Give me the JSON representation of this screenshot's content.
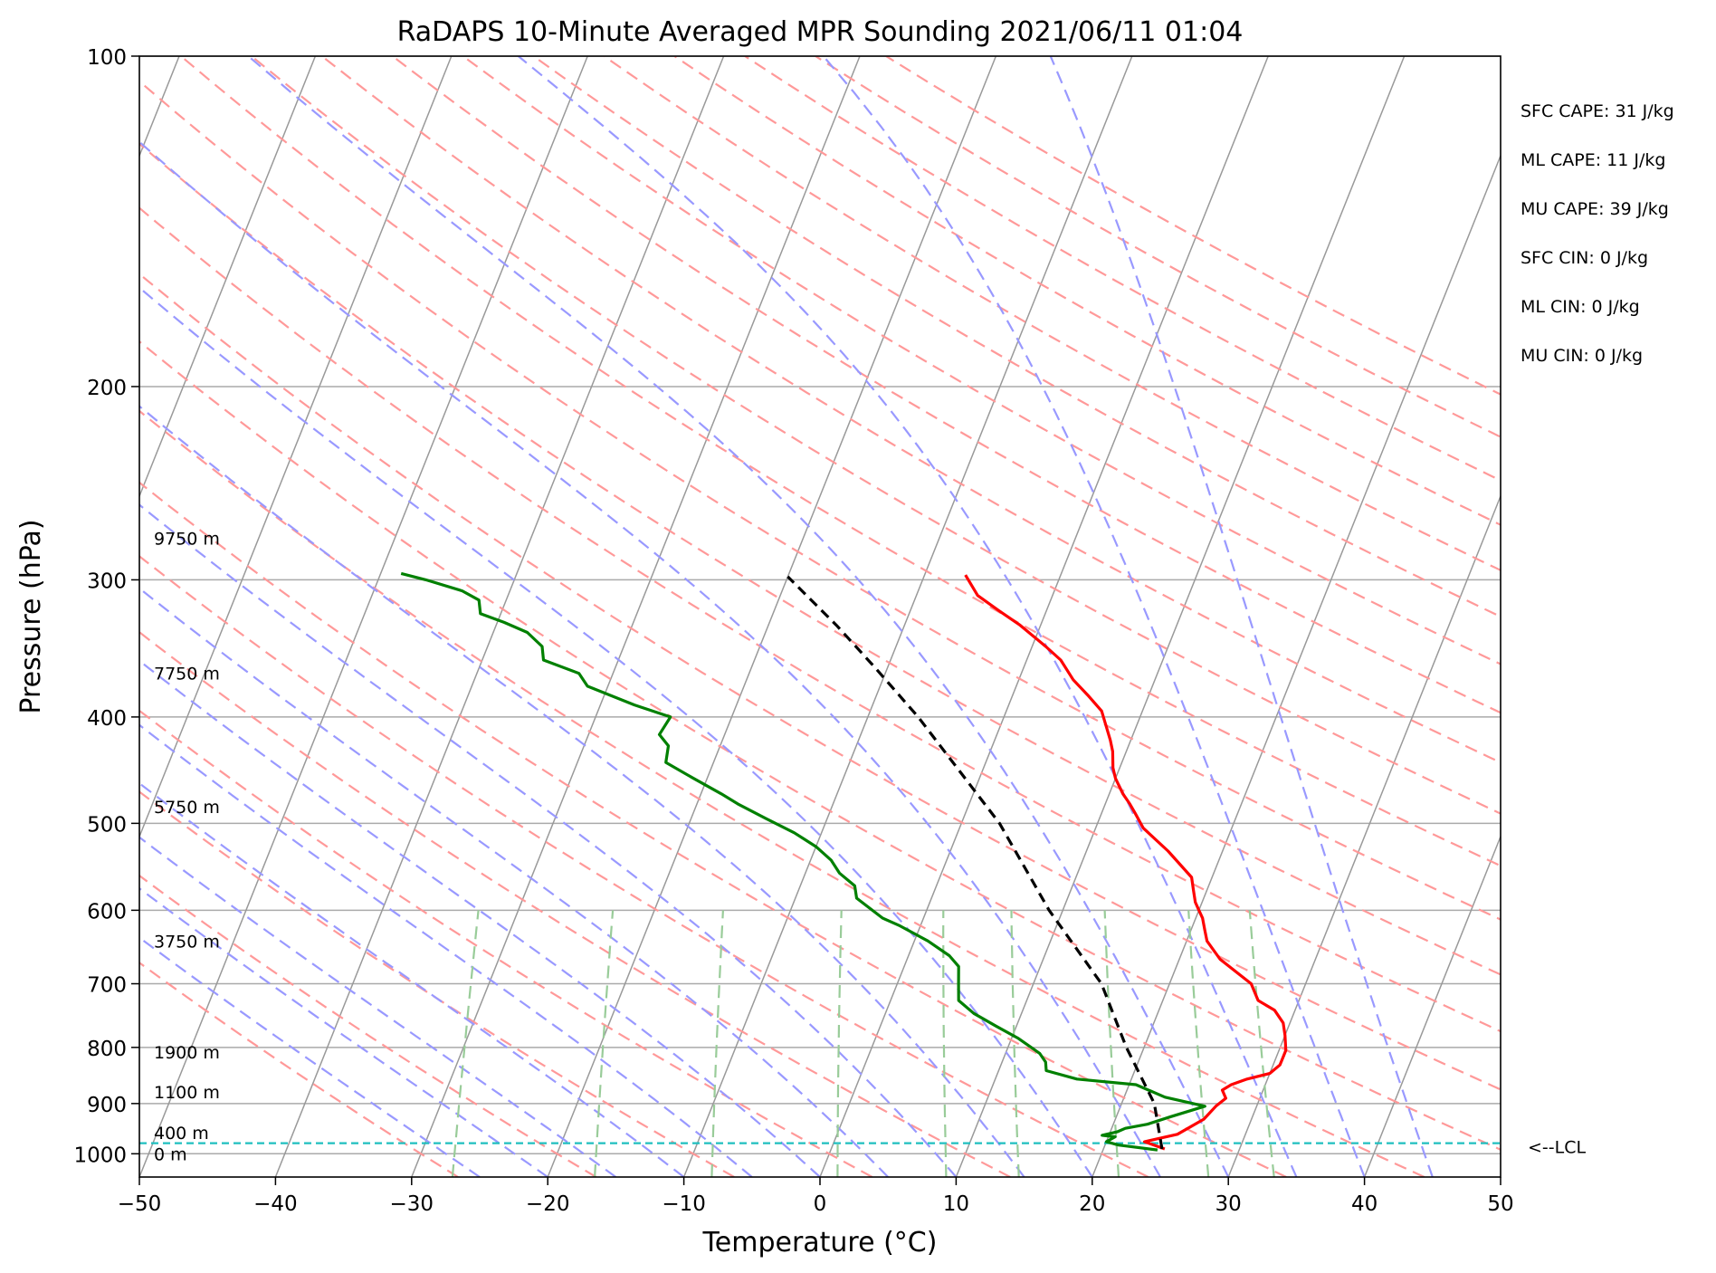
{
  "chart_data": {
    "type": "line",
    "title": "RaDAPS 10-Minute Averaged MPR Sounding 2021/06/11 01:04",
    "xlabel": "Temperature (°C)",
    "ylabel": "Pressure (hPa)",
    "xlim": [
      -50,
      50
    ],
    "ylim": [
      1050,
      100
    ],
    "y_scale": "log",
    "skew": "skew-T log-p",
    "grid": true,
    "x_ticks": [
      "−50",
      "−40",
      "−30",
      "−20",
      "−10",
      "0",
      "10",
      "20",
      "30",
      "40",
      "50"
    ],
    "y_ticks": [
      {
        "p": 100,
        "label": "100"
      },
      {
        "p": 200,
        "label": "200"
      },
      {
        "p": 300,
        "label": "300"
      },
      {
        "p": 400,
        "label": "400"
      },
      {
        "p": 500,
        "label": "500"
      },
      {
        "p": 600,
        "label": "600"
      },
      {
        "p": 700,
        "label": "700"
      },
      {
        "p": 800,
        "label": "800"
      },
      {
        "p": 900,
        "label": "900"
      },
      {
        "p": 1000,
        "label": "1000"
      }
    ],
    "height_labels": [
      {
        "p": 1000,
        "label": "0 m"
      },
      {
        "p": 957,
        "label": "400 m"
      },
      {
        "p": 878,
        "label": "1100 m"
      },
      {
        "p": 808,
        "label": "1900 m"
      },
      {
        "p": 640,
        "label": "3750 m"
      },
      {
        "p": 483,
        "label": "5750 m"
      },
      {
        "p": 365,
        "label": "7750 m"
      },
      {
        "p": 275,
        "label": "9750 m"
      }
    ],
    "lcl": {
      "p": 978,
      "label": "<--LCL"
    },
    "series": [
      {
        "name": "",
        "color": "#ff0000",
        "points": [
          [
            24.5,
            990
          ],
          [
            22.8,
            975
          ],
          [
            25.0,
            960
          ],
          [
            26.5,
            930
          ],
          [
            27.0,
            905
          ],
          [
            27.5,
            890
          ],
          [
            27.0,
            875
          ],
          [
            27.5,
            865
          ],
          [
            28.5,
            855
          ],
          [
            30.0,
            845
          ],
          [
            30.5,
            830
          ],
          [
            30.5,
            815
          ],
          [
            30.5,
            805
          ],
          [
            30.0,
            780
          ],
          [
            29.5,
            760
          ],
          [
            28.5,
            740
          ],
          [
            27.0,
            725
          ],
          [
            26.0,
            700
          ],
          [
            23.0,
            665
          ],
          [
            21.5,
            640
          ],
          [
            21.0,
            625
          ],
          [
            20.5,
            610
          ],
          [
            20.0,
            600
          ],
          [
            19.5,
            590
          ],
          [
            19.0,
            575
          ],
          [
            18.5,
            560
          ],
          [
            16.0,
            530
          ],
          [
            13.5,
            505
          ],
          [
            12.5,
            490
          ],
          [
            11.8,
            480
          ],
          [
            11.0,
            470
          ],
          [
            10.0,
            455
          ],
          [
            9.5,
            445
          ],
          [
            9.0,
            430
          ],
          [
            8.5,
            420
          ],
          [
            7.0,
            395
          ],
          [
            5.5,
            382
          ],
          [
            4.0,
            370
          ],
          [
            2.5,
            355
          ],
          [
            1.0,
            345
          ],
          [
            -1.5,
            330
          ],
          [
            -3.5,
            320
          ],
          [
            -5.5,
            310
          ],
          [
            -7.0,
            297
          ]
        ]
      },
      {
        "name": "",
        "color": "#008000",
        "points": [
          [
            24.0,
            992
          ],
          [
            21.0,
            982
          ],
          [
            20.0,
            975
          ],
          [
            20.5,
            965
          ],
          [
            19.5,
            962
          ],
          [
            20.5,
            955
          ],
          [
            21.0,
            948
          ],
          [
            22.5,
            940
          ],
          [
            24.0,
            925
          ],
          [
            26.2,
            905
          ],
          [
            23.0,
            888
          ],
          [
            20.5,
            865
          ],
          [
            16.0,
            855
          ],
          [
            13.5,
            840
          ],
          [
            13.2,
            825
          ],
          [
            12.5,
            810
          ],
          [
            10.5,
            785
          ],
          [
            8.5,
            765
          ],
          [
            6.5,
            745
          ],
          [
            5.0,
            725
          ],
          [
            4.5,
            700
          ],
          [
            4.0,
            675
          ],
          [
            3.0,
            660
          ],
          [
            1.0,
            640
          ],
          [
            -1.5,
            620
          ],
          [
            -3.0,
            610
          ],
          [
            -5.5,
            585
          ],
          [
            -6.0,
            570
          ],
          [
            -7.5,
            555
          ],
          [
            -8.5,
            540
          ],
          [
            -10.0,
            525
          ],
          [
            -12.0,
            510
          ],
          [
            -14.5,
            495
          ],
          [
            -17.0,
            480
          ],
          [
            -18.5,
            470
          ],
          [
            -21.0,
            455
          ],
          [
            -23.5,
            440
          ],
          [
            -23.8,
            425
          ],
          [
            -24.8,
            415
          ],
          [
            -24.5,
            400
          ],
          [
            -27.5,
            390
          ],
          [
            -31.5,
            375
          ],
          [
            -32.5,
            365
          ],
          [
            -35.5,
            355
          ],
          [
            -36.0,
            345
          ],
          [
            -37.5,
            335
          ],
          [
            -39.5,
            328
          ],
          [
            -41.5,
            322
          ],
          [
            -42.0,
            313
          ],
          [
            -43.5,
            307
          ],
          [
            -46.5,
            300
          ],
          [
            -48.5,
            296
          ]
        ]
      },
      {
        "name": "",
        "color": "#000000",
        "dashed": true,
        "points": [
          [
            24.3,
            990
          ],
          [
            22.4,
            900
          ],
          [
            18.7,
            800
          ],
          [
            15.0,
            700
          ],
          [
            9.0,
            600
          ],
          [
            2.8,
            500
          ],
          [
            -6.3,
            400
          ],
          [
            -11.0,
            360
          ],
          [
            -15.0,
            330
          ],
          [
            -20.0,
            298
          ]
        ]
      }
    ],
    "stats": [
      "SFC CAPE: 31 J/kg",
      "ML CAPE: 11 J/kg",
      "MU CAPE: 39 J/kg",
      "SFC CIN: 0 J/kg",
      "ML CIN: 0 J/kg",
      "MU CIN: 0 J/kg"
    ],
    "reference_lines": {
      "isotherm_color": "#999999",
      "dry_adiabat_color": "#ff9999",
      "moist_adiabat_color": "#9999ff",
      "mixing_ratio_color": "#99cc99",
      "lcl_color": "#1fbfbf",
      "grid_color": "#aaaaaa"
    }
  }
}
